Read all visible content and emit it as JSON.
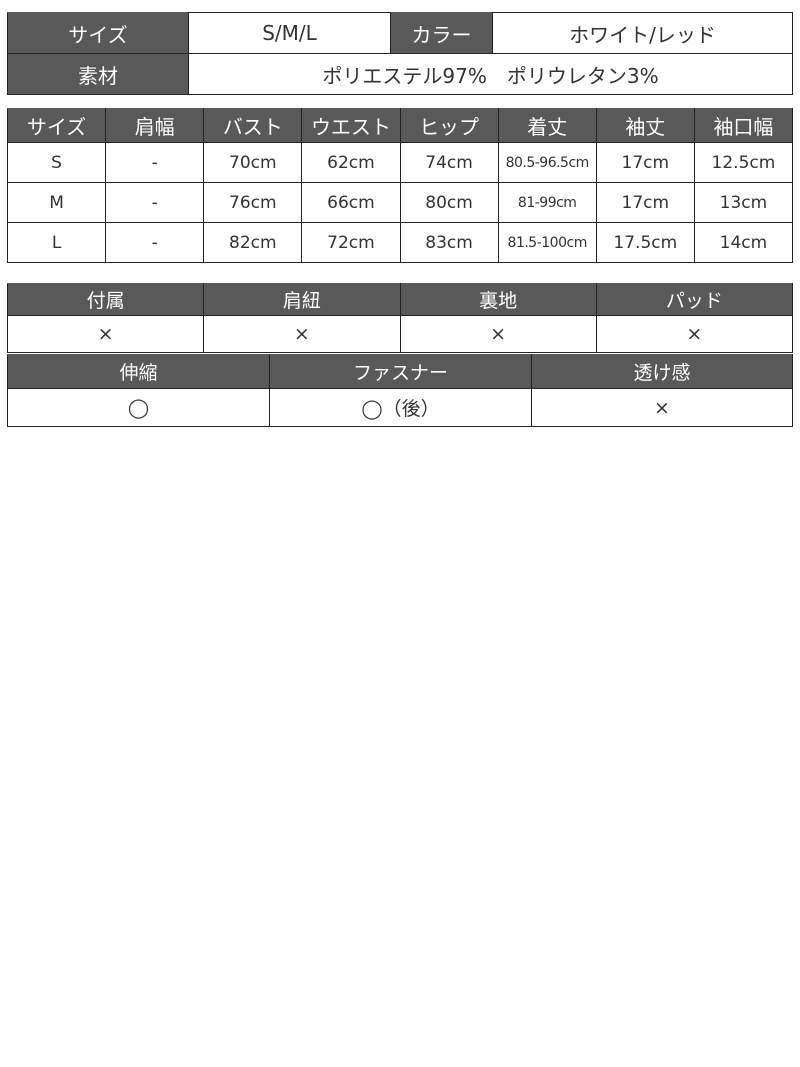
{
  "spec": {
    "size_label": "サイズ",
    "size_value": "S/M/L",
    "color_label": "カラー",
    "color_value": "ホワイト/レッド",
    "material_label": "素材",
    "material_value": "ポリエステル97%　ポリウレタン3%"
  },
  "sizes": {
    "headers": [
      "サイズ",
      "肩幅",
      "バスト",
      "ウエスト",
      "ヒップ",
      "着丈",
      "袖丈",
      "袖口幅"
    ],
    "rows": [
      [
        "S",
        "-",
        "70cm",
        "62cm",
        "74cm",
        "80.5-96.5cm",
        "17cm",
        "12.5cm"
      ],
      [
        "M",
        "-",
        "76cm",
        "66cm",
        "80cm",
        "81-99cm",
        "17cm",
        "13cm"
      ],
      [
        "L",
        "-",
        "82cm",
        "72cm",
        "83cm",
        "81.5-100cm",
        "17.5cm",
        "14cm"
      ]
    ]
  },
  "features1": {
    "headers": [
      "付属",
      "肩紐",
      "裏地",
      "パッド"
    ],
    "values": [
      "×",
      "×",
      "×",
      "×"
    ]
  },
  "features2": {
    "headers": [
      "伸縮",
      "ファスナー",
      "透け感"
    ],
    "values": [
      "◯",
      "◯（後）",
      "×"
    ]
  },
  "colors": {
    "header_bg": "#595959"
  }
}
